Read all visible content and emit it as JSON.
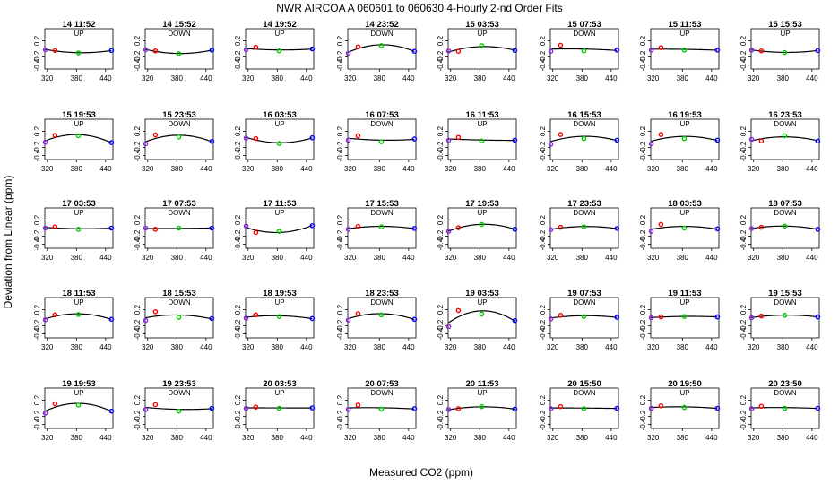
{
  "title": "NWR   AIRCOA A     060601 to 060630   4-Hourly 2-nd Order Fits",
  "xlabel": "Measured CO2 (ppm)",
  "ylabel": "Deviation from Linear (ppm)",
  "colors": {
    "points": [
      "#8a2be2",
      "#ff0000",
      "#00cc00",
      "#0000ff"
    ],
    "curve": "#000000"
  },
  "chart_data": {
    "type": "scatter",
    "layout": "small-multiples 5 rows x 8 columns",
    "x_ticks": [
      320,
      380,
      440
    ],
    "y_ticks": [
      0.2,
      -0.2,
      -0.4
    ],
    "ylim": [
      -0.5,
      0.5
    ],
    "xlim": [
      315,
      455
    ],
    "grid": false,
    "point_x": [
      316,
      336,
      384,
      452
    ],
    "panels": [
      {
        "title": "14 11:52",
        "label": "UP",
        "y": [
          -0.02,
          -0.04,
          -0.1,
          -0.04
        ]
      },
      {
        "title": "14 15:52",
        "label": "DOWN",
        "y": [
          -0.02,
          -0.05,
          -0.12,
          -0.03
        ]
      },
      {
        "title": "14 19:52",
        "label": "UP",
        "y": [
          -0.02,
          0.04,
          -0.05,
          0.0
        ]
      },
      {
        "title": "14 23:52",
        "label": "DOWN",
        "y": [
          -0.11,
          0.05,
          0.08,
          -0.06
        ]
      },
      {
        "title": "15 03:53",
        "label": "UP",
        "y": [
          -0.05,
          -0.06,
          0.08,
          -0.04
        ]
      },
      {
        "title": "15 07:53",
        "label": "DOWN",
        "y": [
          -0.06,
          0.09,
          -0.05,
          -0.03
        ]
      },
      {
        "title": "15 11:53",
        "label": "UP",
        "y": [
          -0.03,
          0.03,
          -0.03,
          -0.03
        ]
      },
      {
        "title": "15 15:53",
        "label": "UP",
        "y": [
          -0.03,
          -0.05,
          -0.09,
          -0.04
        ]
      },
      {
        "title": "15 19:53",
        "label": "UP",
        "y": [
          -0.07,
          0.1,
          0.09,
          -0.08
        ]
      },
      {
        "title": "15 23:53",
        "label": "DOWN",
        "y": [
          -0.11,
          0.11,
          0.06,
          -0.05
        ]
      },
      {
        "title": "16 03:53",
        "label": "UP",
        "y": [
          0.03,
          0.02,
          -0.1,
          0.04
        ]
      },
      {
        "title": "16 07:53",
        "label": "DOWN",
        "y": [
          -0.02,
          0.09,
          -0.06,
          0.01
        ]
      },
      {
        "title": "16 11:53",
        "label": "UP",
        "y": [
          -0.02,
          0.05,
          -0.04,
          -0.02
        ]
      },
      {
        "title": "16 15:53",
        "label": "DOWN",
        "y": [
          -0.12,
          0.12,
          0.02,
          -0.02
        ]
      },
      {
        "title": "16 19:53",
        "label": "UP",
        "y": [
          -0.11,
          0.12,
          0.02,
          -0.02
        ]
      },
      {
        "title": "16 23:53",
        "label": "DOWN",
        "y": [
          0.0,
          -0.04,
          0.09,
          -0.04
        ]
      },
      {
        "title": "17 03:53",
        "label": "UP",
        "y": [
          0.0,
          0.03,
          -0.03,
          0.0
        ]
      },
      {
        "title": "17 07:53",
        "label": "DOWN",
        "y": [
          0.0,
          -0.03,
          0.0,
          0.0
        ]
      },
      {
        "title": "17 11:53",
        "label": "UP",
        "y": [
          0.05,
          -0.11,
          -0.08,
          0.06
        ]
      },
      {
        "title": "17 15:53",
        "label": "DOWN",
        "y": [
          -0.03,
          0.04,
          0.03,
          -0.01
        ]
      },
      {
        "title": "17 19:53",
        "label": "UP",
        "y": [
          -0.08,
          0.01,
          0.09,
          -0.03
        ]
      },
      {
        "title": "17 23:53",
        "label": "DOWN",
        "y": [
          -0.04,
          0.02,
          0.03,
          -0.01
        ]
      },
      {
        "title": "18 03:53",
        "label": "UP",
        "y": [
          -0.08,
          0.09,
          0.0,
          -0.02
        ]
      },
      {
        "title": "18 07:53",
        "label": "DOWN",
        "y": [
          -0.01,
          0.02,
          0.05,
          -0.03
        ]
      },
      {
        "title": "18 11:53",
        "label": "UP",
        "y": [
          -0.05,
          0.07,
          0.08,
          -0.04
        ]
      },
      {
        "title": "18 15:53",
        "label": "DOWN",
        "y": [
          -0.07,
          0.15,
          0.01,
          -0.02
        ]
      },
      {
        "title": "18 19:53",
        "label": "UP",
        "y": [
          -0.01,
          0.07,
          0.03,
          -0.02
        ]
      },
      {
        "title": "18 23:53",
        "label": "DOWN",
        "y": [
          -0.06,
          0.1,
          0.07,
          -0.04
        ]
      },
      {
        "title": "19 03:53",
        "label": "UP",
        "y": [
          -0.22,
          0.18,
          0.09,
          -0.07
        ]
      },
      {
        "title": "19 07:53",
        "label": "DOWN",
        "y": [
          -0.03,
          0.06,
          0.03,
          0.01
        ]
      },
      {
        "title": "19 11:53",
        "label": "UP",
        "y": [
          0.0,
          0.02,
          0.03,
          0.02
        ]
      },
      {
        "title": "19 15:53",
        "label": "DOWN",
        "y": [
          0.0,
          0.04,
          0.06,
          0.02
        ]
      },
      {
        "title": "19 19:53",
        "label": "UP",
        "y": [
          -0.12,
          0.11,
          0.08,
          -0.07
        ]
      },
      {
        "title": "19 23:53",
        "label": "DOWN",
        "y": [
          -0.03,
          0.09,
          -0.07,
          0.0
        ]
      },
      {
        "title": "20 03:53",
        "label": "UP",
        "y": [
          0.0,
          0.03,
          0.0,
          0.01
        ]
      },
      {
        "title": "20 07:53",
        "label": "DOWN",
        "y": [
          -0.03,
          0.08,
          -0.02,
          -0.01
        ]
      },
      {
        "title": "20 11:53",
        "label": "UP",
        "y": [
          -0.03,
          -0.01,
          0.04,
          -0.02
        ]
      },
      {
        "title": "20 15:50",
        "label": "DOWN",
        "y": [
          -0.01,
          0.04,
          -0.01,
          0.0
        ]
      },
      {
        "title": "20 19:50",
        "label": "UP",
        "y": [
          0.0,
          0.06,
          0.02,
          0.0
        ]
      },
      {
        "title": "20 23:50",
        "label": "DOWN",
        "y": [
          -0.01,
          0.05,
          0.0,
          0.0
        ]
      }
    ]
  }
}
